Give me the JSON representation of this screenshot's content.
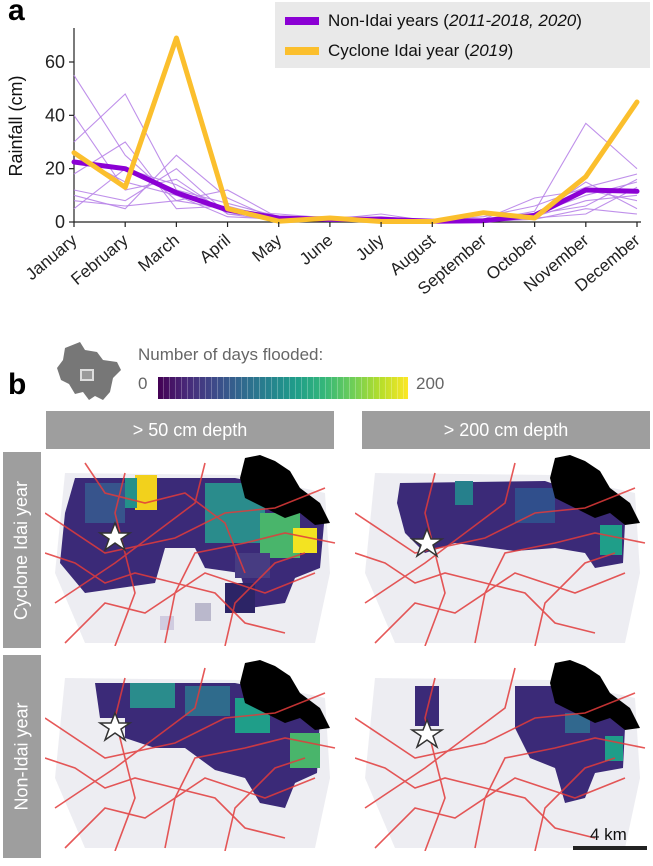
{
  "panel_a_label": "a",
  "panel_b_label": "b",
  "chart_data": {
    "type": "line",
    "ylabel": "Rainfall (cm)",
    "ylim": [
      0,
      72
    ],
    "yticks": [
      0,
      20,
      40,
      60
    ],
    "categories": [
      "January",
      "February",
      "March",
      "April",
      "May",
      "June",
      "July",
      "August",
      "September",
      "October",
      "November",
      "December"
    ],
    "legend_placement": "top-right",
    "series": [
      {
        "name": "Non-Idai years",
        "years": "2011-2018, 2020",
        "color": "#8b00d4",
        "role": "mean",
        "values": [
          22.5,
          20,
          11,
          4.5,
          1.5,
          1,
          1,
          0.3,
          0.5,
          2.5,
          12,
          11.5
        ]
      },
      {
        "name": "Cyclone Idai year",
        "years": "2019",
        "color": "#fbbf2d",
        "role": "main",
        "values": [
          26,
          13,
          69,
          5,
          0.3,
          1.5,
          0.2,
          0.2,
          3.5,
          1.5,
          17,
          45
        ]
      }
    ],
    "individual_years": {
      "color": "#b884e8",
      "lines": [
        [
          55,
          25,
          8,
          5,
          1,
          2,
          0.5,
          0.2,
          0.5,
          4,
          37,
          20
        ],
        [
          40,
          12,
          16,
          3,
          0.5,
          1,
          2,
          0.3,
          1,
          2,
          15,
          5
        ],
        [
          30,
          48,
          12,
          7,
          2,
          0.5,
          1,
          0.2,
          0.5,
          3,
          10,
          15
        ],
        [
          18,
          30,
          5,
          6,
          1,
          0.3,
          0.5,
          0.1,
          0.2,
          1,
          5,
          3
        ],
        [
          12,
          8,
          20,
          3,
          2,
          2,
          1,
          0.5,
          2,
          6,
          13,
          18
        ],
        [
          10,
          5,
          25,
          9,
          0.5,
          1,
          3,
          0.2,
          0.5,
          2,
          8,
          10
        ],
        [
          25,
          15,
          10,
          2,
          1,
          0.5,
          0.3,
          0.3,
          0.3,
          1.5,
          3,
          13
        ],
        [
          5,
          20,
          14,
          4,
          3,
          1.5,
          0.5,
          0.2,
          1,
          9,
          12,
          8
        ],
        [
          8,
          6,
          8,
          12,
          1.5,
          0.8,
          1.2,
          0.4,
          0.8,
          3,
          6,
          16
        ]
      ]
    }
  },
  "colorbar": {
    "title": "Number of days flooded:",
    "min": "0",
    "max": "200"
  },
  "columns": [
    "> 50 cm depth",
    "> 200 cm depth"
  ],
  "rows": [
    "Cyclone Idai year",
    "Non-Idai year"
  ],
  "scalebar": "4 km",
  "icons": [
    "star-icon",
    "location-inset-icon"
  ]
}
